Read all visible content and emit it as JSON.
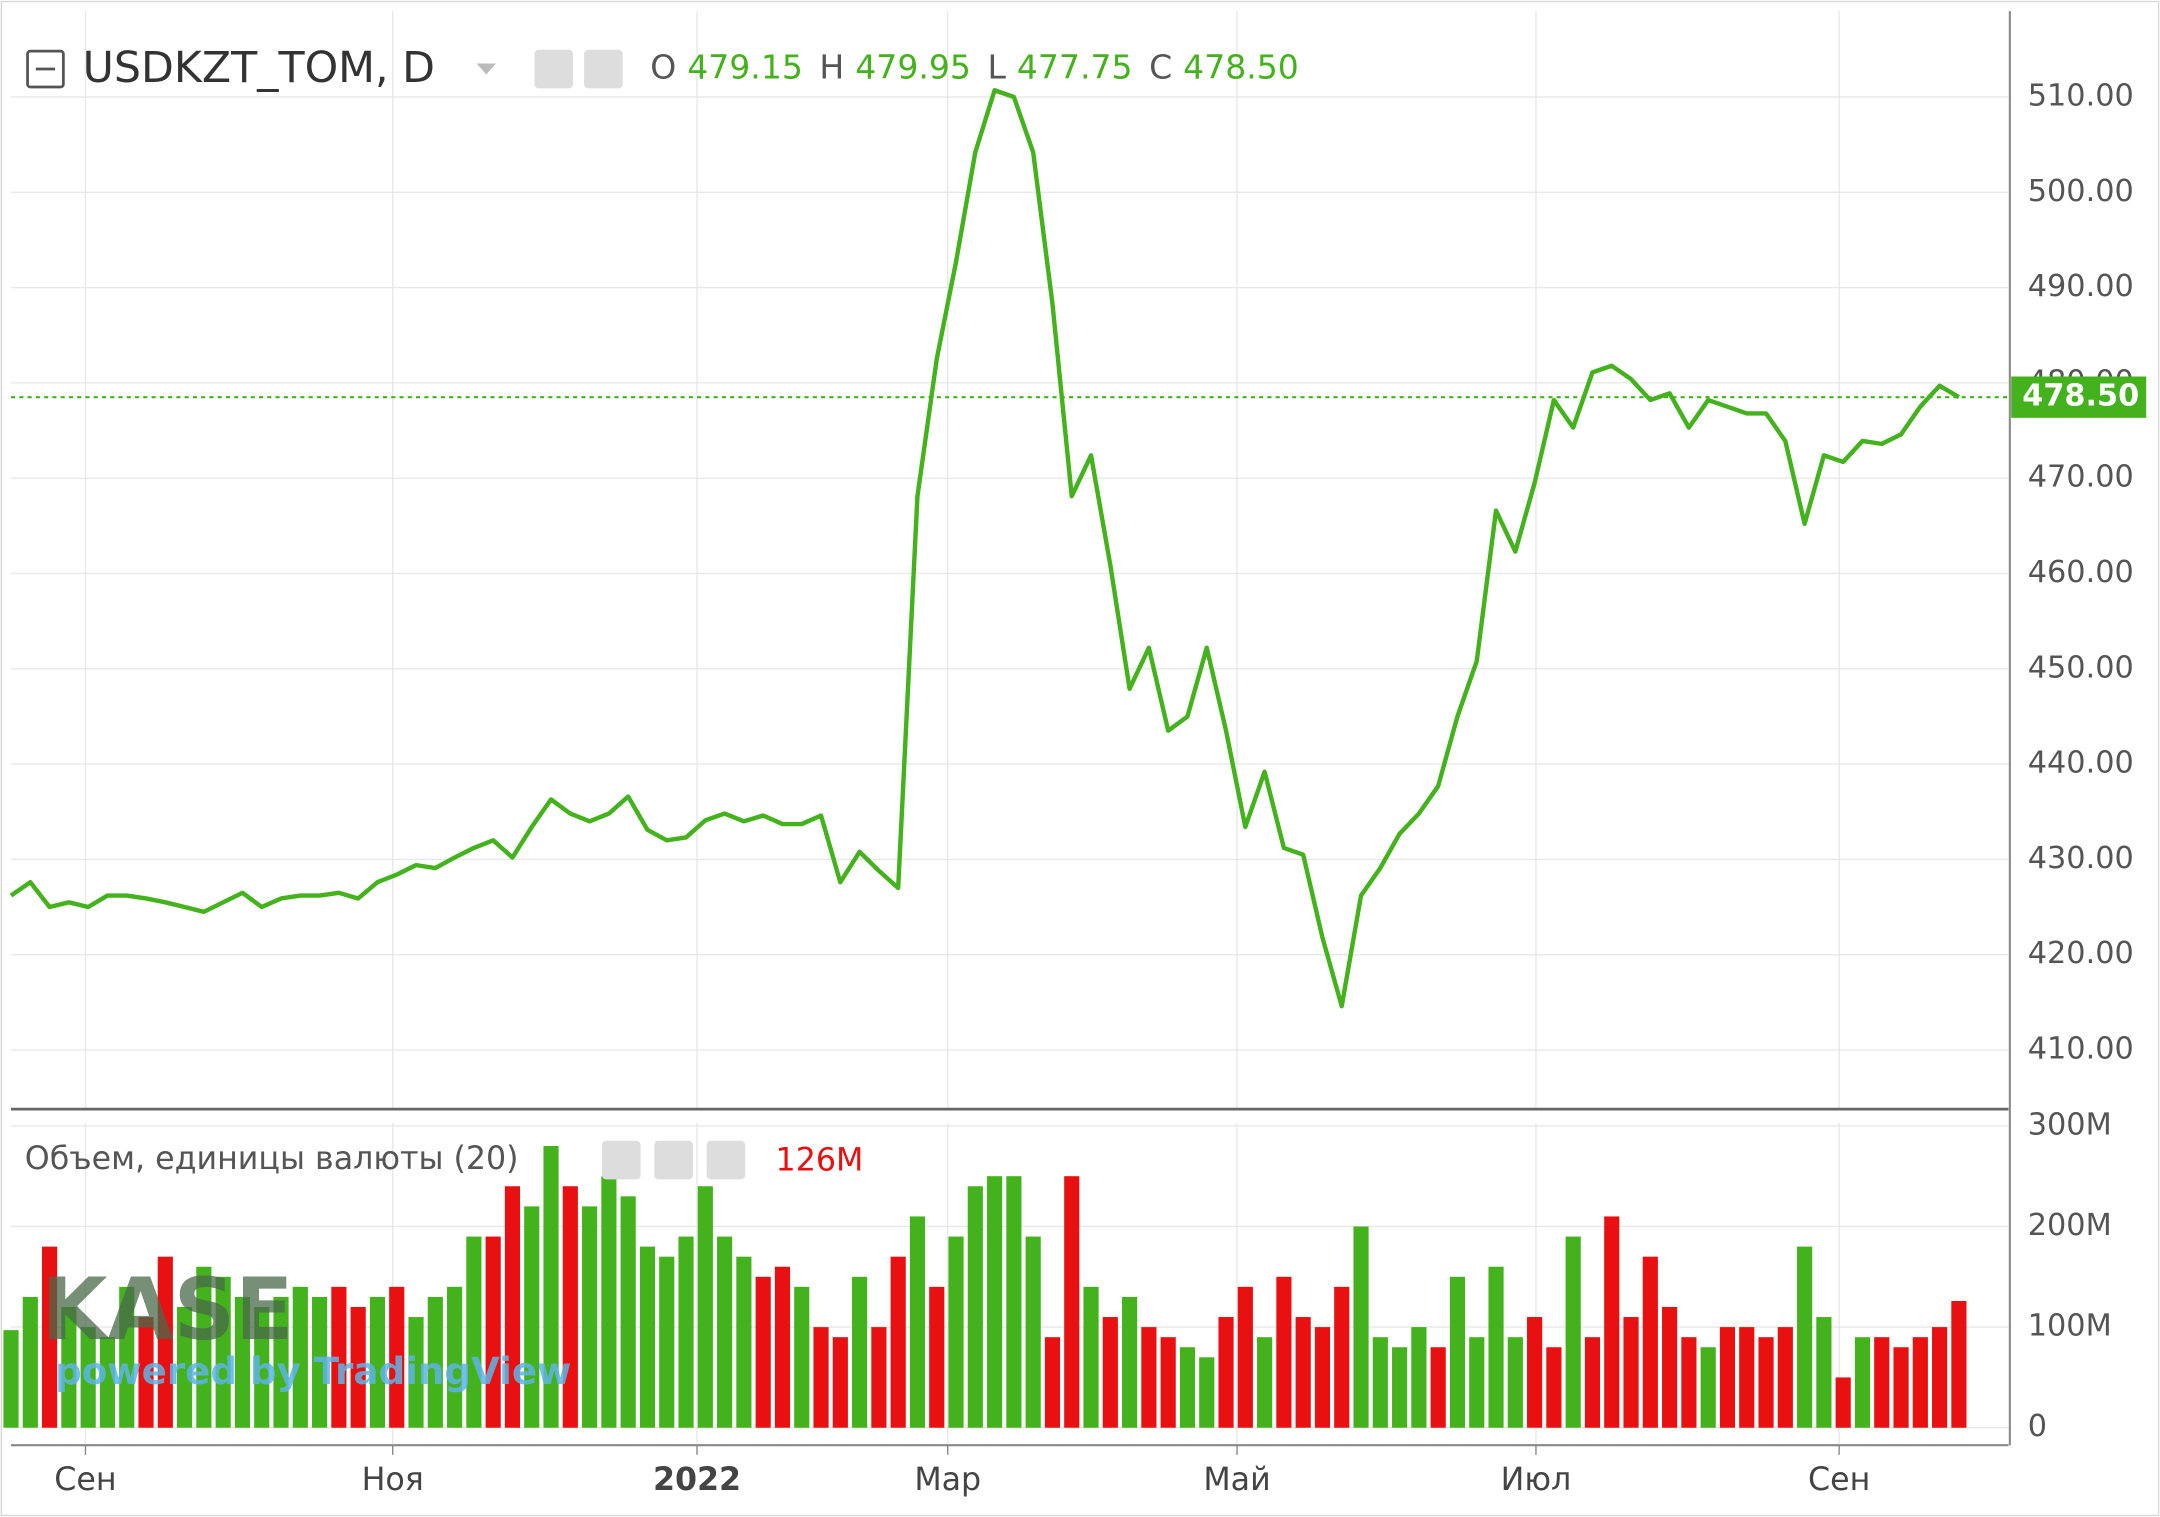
{
  "chart_data": [
    {
      "type": "line",
      "title": "USDKZT_TOM, D",
      "ohlc": [
        {
          "label": "O",
          "value": "479.15"
        },
        {
          "label": "H",
          "value": "479.95"
        },
        {
          "label": "L",
          "value": "477.75"
        },
        {
          "label": "C",
          "value": "478.50"
        }
      ],
      "last_price": {
        "value": 478.5,
        "label": "478.50"
      },
      "color": "#44b21c",
      "grid": true,
      "values": [
        426.2,
        427.6,
        425,
        425.5,
        425,
        426.2,
        426.2,
        425.9,
        425.5,
        425,
        424.5,
        425.5,
        426.5,
        425,
        425.9,
        426.2,
        426.2,
        426.5,
        425.9,
        427.6,
        428.4,
        429.4,
        429.1,
        430.2,
        431.2,
        432,
        430.2,
        433.4,
        436.3,
        434.8,
        434,
        434.8,
        436.6,
        433.1,
        432,
        432.3,
        434.1,
        434.8,
        434,
        434.6,
        433.7,
        433.7,
        434.6,
        427.6,
        430.8,
        428.8,
        427,
        468.1,
        482.5,
        492.7,
        504.2,
        510.7,
        510,
        504.2,
        488.3,
        468.1,
        472.4,
        460.9,
        447.9,
        452.2,
        443.5,
        445,
        452.2,
        443.5,
        433.4,
        439.2,
        431.2,
        430.5,
        421.8,
        414.6,
        426.2,
        429.1,
        432.7,
        434.8,
        437.7,
        445,
        450.8,
        466.6,
        462.3,
        469.5,
        478.2,
        475.3,
        481.1,
        481.8,
        480.4,
        478.2,
        478.9,
        475.3,
        478.2,
        477.5,
        476.8,
        476.8,
        473.9,
        465.2,
        472.4,
        471.7,
        473.9,
        473.6,
        474.6,
        477.5,
        479.7,
        478.5
      ],
      "xlim": [
        0,
        103.57
      ],
      "xticks": [
        {
          "value": 3.86,
          "label": "Сен"
        },
        {
          "value": 19.79,
          "label": "Ноя"
        },
        {
          "value": 35.57,
          "label": "2022"
        },
        {
          "value": 48.57,
          "label": "Мар"
        },
        {
          "value": 63.57,
          "label": "Май"
        },
        {
          "value": 79.07,
          "label": "Июл"
        },
        {
          "value": 94.79,
          "label": "Сен"
        }
      ],
      "ylim": [
        403.8,
        519
      ],
      "yticks": [
        {
          "value": 410,
          "label": "410.00"
        },
        {
          "value": 420,
          "label": "420.00"
        },
        {
          "value": 430,
          "label": "430.00"
        },
        {
          "value": 440,
          "label": "440.00"
        },
        {
          "value": 450,
          "label": "450.00"
        },
        {
          "value": 460,
          "label": "460.00"
        },
        {
          "value": 470,
          "label": "470.00"
        },
        {
          "value": 480,
          "label": "480.00"
        },
        {
          "value": 490,
          "label": "490.00"
        },
        {
          "value": 500,
          "label": "500.00"
        },
        {
          "value": 510,
          "label": "510.00"
        }
      ]
    },
    {
      "type": "bar",
      "title": "Объем, единицы валюты (20)",
      "last_value_label": "126M",
      "watermark": {
        "logo": "KASE",
        "text": "powered by TradingView"
      },
      "grid": true,
      "values": [
        97,
        130,
        180,
        120,
        100,
        90,
        140,
        110,
        170,
        120,
        160,
        150,
        130,
        120,
        130,
        140,
        130,
        140,
        120,
        130,
        140,
        110,
        130,
        140,
        190,
        190,
        240,
        220,
        280,
        240,
        220,
        250,
        230,
        180,
        170,
        190,
        240,
        190,
        170,
        150,
        160,
        140,
        100,
        90,
        150,
        100,
        170,
        210,
        140,
        190,
        240,
        250,
        250,
        190,
        90,
        250,
        140,
        110,
        130,
        100,
        90,
        80,
        70,
        110,
        140,
        90,
        150,
        110,
        100,
        140,
        200,
        90,
        80,
        100,
        80,
        150,
        90,
        160,
        90,
        110,
        80,
        190,
        90,
        210,
        110,
        170,
        120,
        90,
        80,
        100,
        100,
        90,
        100,
        180,
        110,
        50,
        90,
        90,
        80,
        90,
        100,
        126
      ],
      "colors": [
        "#44b21c",
        "#44b21c",
        "#e81010",
        "#44b21c",
        "#44b21c",
        "#44b21c",
        "#44b21c",
        "#e81010",
        "#e81010",
        "#44b21c",
        "#44b21c",
        "#44b21c",
        "#44b21c",
        "#44b21c",
        "#44b21c",
        "#44b21c",
        "#44b21c",
        "#e81010",
        "#e81010",
        "#44b21c",
        "#e81010",
        "#44b21c",
        "#44b21c",
        "#44b21c",
        "#44b21c",
        "#e81010",
        "#e81010",
        "#44b21c",
        "#44b21c",
        "#e81010",
        "#44b21c",
        "#44b21c",
        "#44b21c",
        "#44b21c",
        "#44b21c",
        "#44b21c",
        "#44b21c",
        "#44b21c",
        "#44b21c",
        "#e81010",
        "#e81010",
        "#44b21c",
        "#e81010",
        "#e81010",
        "#44b21c",
        "#e81010",
        "#e81010",
        "#44b21c",
        "#e81010",
        "#44b21c",
        "#44b21c",
        "#44b21c",
        "#44b21c",
        "#44b21c",
        "#e81010",
        "#e81010",
        "#44b21c",
        "#e81010",
        "#44b21c",
        "#e81010",
        "#e81010",
        "#44b21c",
        "#44b21c",
        "#e81010",
        "#e81010",
        "#44b21c",
        "#e81010",
        "#e81010",
        "#e81010",
        "#e81010",
        "#44b21c",
        "#44b21c",
        "#44b21c",
        "#44b21c",
        "#e81010",
        "#44b21c",
        "#44b21c",
        "#44b21c",
        "#44b21c",
        "#e81010",
        "#e81010",
        "#44b21c",
        "#e81010",
        "#e81010",
        "#e81010",
        "#e81010",
        "#e81010",
        "#e81010",
        "#44b21c",
        "#e81010",
        "#e81010",
        "#e81010",
        "#e81010",
        "#44b21c",
        "#44b21c",
        "#e81010",
        "#44b21c",
        "#e81010",
        "#e81010",
        "#e81010",
        "#e81010",
        "#e81010"
      ],
      "xlim": [
        0,
        103.57
      ],
      "ylim": [
        -16,
        303
      ],
      "yticks": [
        0,
        {
          "value": 100,
          "label": "100M"
        },
        {
          "value": 200,
          "label": "200M"
        },
        {
          "value": 300,
          "label": "300M"
        }
      ]
    }
  ]
}
